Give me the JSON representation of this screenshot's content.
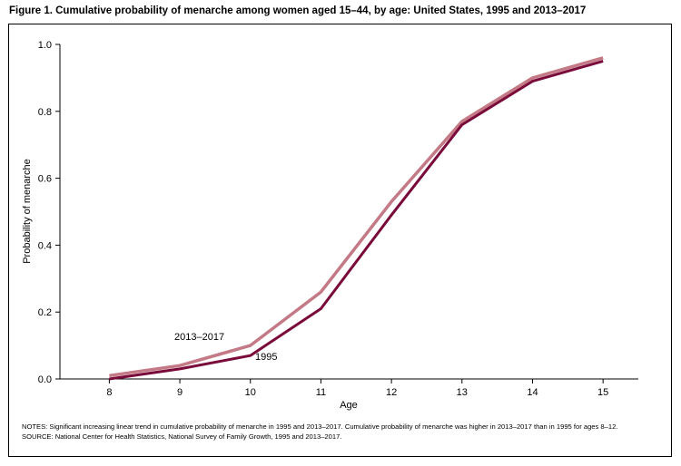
{
  "figure": {
    "title": "Figure 1. Cumulative probability of menarche among women aged 15–44, by age: United States, 1995 and 2013–2017",
    "notes": "NOTES: Significant increasing linear trend in cumulative probability of menarche in 1995 and 2013–2017. Cumulative probability of menarche was higher in 2013–2017 than in 1995 for ages 8–12.",
    "source": "SOURCE: National Center for Health Statistics, National Survey of Family Growth, 1995 and 2013–2017."
  },
  "chart_data": {
    "type": "line",
    "title": "",
    "xlabel": "Age",
    "ylabel": "Probability of menarche",
    "x": [
      8,
      9,
      10,
      11,
      12,
      13,
      14,
      15
    ],
    "xlim": [
      7.3,
      15.5
    ],
    "ylim": [
      0,
      1.0
    ],
    "yticks": [
      0.0,
      0.2,
      0.4,
      0.6,
      0.8,
      1.0
    ],
    "ytick_labels": [
      "0.0",
      "0.2",
      "0.4",
      "0.6",
      "0.8",
      "1.0"
    ],
    "grid": false,
    "legend": "inline labels",
    "series": [
      {
        "name": "2013–2017",
        "color": "#c47a86",
        "values": [
          0.01,
          0.04,
          0.1,
          0.26,
          0.53,
          0.77,
          0.9,
          0.96
        ]
      },
      {
        "name": "1995",
        "color": "#7a0a3a",
        "values": [
          0.0,
          0.03,
          0.07,
          0.21,
          0.49,
          0.76,
          0.89,
          0.95
        ]
      }
    ]
  }
}
